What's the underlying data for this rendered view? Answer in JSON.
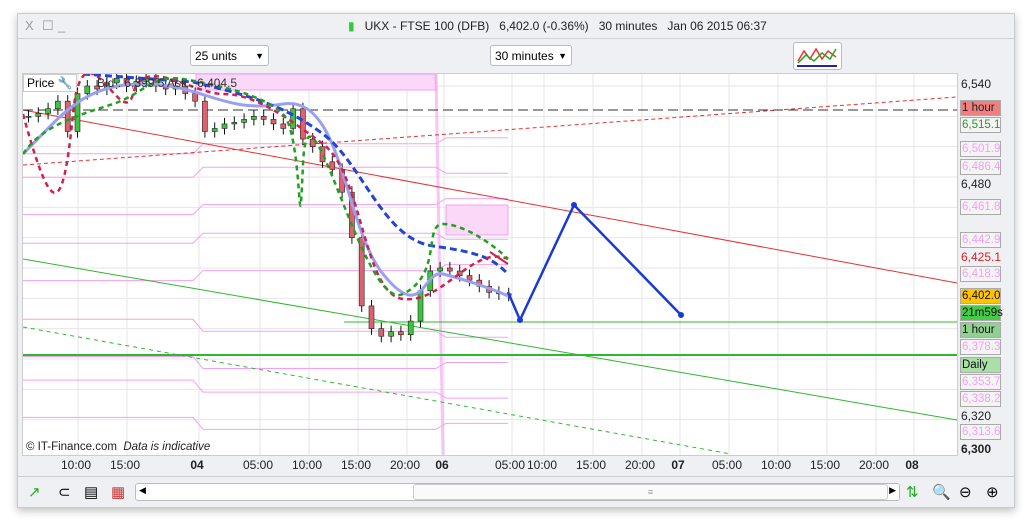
{
  "window": {
    "title_symbol": "UKX - FTSE 100 (DFB)",
    "title_price": "6,402.0 (-0.36%)",
    "title_interval": "30 minutes",
    "title_datetime": "Jan 06 2015 06:37",
    "close": "X",
    "maximize": "☐",
    "minimize": "_"
  },
  "toolbar": {
    "units": "25 units",
    "interval": "30 minutes"
  },
  "chart": {
    "price_label": "Price",
    "bid_ask": "Bid : 6,399.5 Ask : 6,404.5",
    "copyright": "© IT-Finance.com",
    "disclaimer": "Data is indicative"
  },
  "chart_data": {
    "type": "candlestick",
    "ylim": [
      6300,
      6540
    ],
    "closes": [
      6520,
      6522,
      6525,
      6530,
      6510,
      6535,
      6540,
      6538,
      6542,
      6545,
      6540,
      6543,
      6545,
      6540,
      6538,
      6540,
      6535,
      6530,
      6510,
      6512,
      6515,
      6516,
      6518,
      6520,
      6518,
      6515,
      6512,
      6525,
      6505,
      6500,
      6490,
      6485,
      6470,
      6440,
      6395,
      6380,
      6375,
      6378,
      6376,
      6385,
      6405,
      6418,
      6420,
      6418,
      6415,
      6412,
      6408,
      6404,
      6403,
      6402
    ],
    "colors": {
      "up": "#3cc43c",
      "down": "#e06070",
      "accent_red": "#e53030",
      "accent_green": "#2eb82e",
      "pivot": "#f5a0f0"
    }
  },
  "price_axis": {
    "ticks": [
      "6,540",
      "6,480",
      "6,425.1",
      "6,320",
      "6,300"
    ],
    "badges": [
      {
        "text": "1 hour",
        "bg": "#f08080",
        "fg": "#222"
      },
      {
        "text": "6,515.1",
        "bg": "#f4f4f4",
        "fg": "#2a9a2a"
      },
      {
        "text": "6,501.9"
      },
      {
        "text": "6,486.4"
      },
      {
        "text": "6,461.8"
      },
      {
        "text": "6,442.9"
      },
      {
        "text": "6,418.3"
      },
      {
        "text": "6,402.0",
        "bg": "#ffc400",
        "fg": "#111"
      },
      {
        "text": "21m59s",
        "bg": "#44cc44",
        "fg": "#111"
      },
      {
        "text": "1 hour",
        "bg": "#90d090",
        "fg": "#111"
      },
      {
        "text": "6,378.3"
      },
      {
        "text": "Daily",
        "bg": "#a8e0a8",
        "fg": "#111"
      },
      {
        "text": "6,353.7"
      },
      {
        "text": "6,338.2"
      },
      {
        "text": "6,313.6"
      }
    ]
  },
  "time_axis": [
    "10:00",
    "15:00",
    "04",
    "05:00",
    "10:00",
    "15:00",
    "20:00",
    "06",
    "05:00",
    "10:00",
    "15:00",
    "20:00",
    "07",
    "05:00",
    "10:00",
    "15:00",
    "20:00",
    "08"
  ],
  "bottom": {
    "scroll_grip": "≡"
  }
}
